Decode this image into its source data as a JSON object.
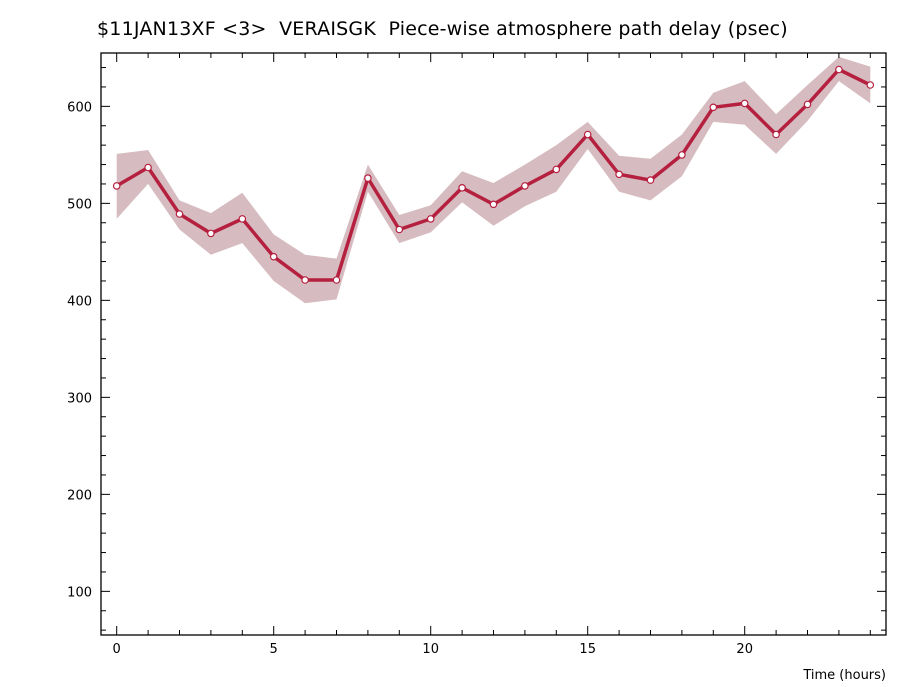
{
  "chart_data": {
    "type": "line",
    "title": "$11JAN13XF <3>  VERAISGK  Piece-wise atmosphere path delay (psec)",
    "xlabel": "Time (hours)",
    "ylabel": "",
    "xlim": [
      -0.5,
      24.5
    ],
    "ylim": [
      55,
      655
    ],
    "x_ticks": [
      0,
      5,
      10,
      15,
      20
    ],
    "y_ticks": [
      100,
      200,
      300,
      400,
      500,
      600
    ],
    "grid": false,
    "series": [
      {
        "x": [
          0,
          1,
          2,
          3,
          4,
          5,
          6,
          7,
          8,
          9,
          10,
          11,
          12,
          13,
          14,
          15,
          16,
          17,
          18,
          19,
          20,
          21,
          22,
          23,
          24
        ],
        "values": [
          518,
          537,
          489,
          469,
          484,
          445,
          421,
          421,
          526,
          473,
          484,
          516,
          499,
          518,
          535,
          571,
          530,
          524,
          550,
          599,
          603,
          571,
          602,
          638,
          622
        ],
        "upper": [
          551,
          555,
          503,
          490,
          511,
          468,
          447,
          443,
          540,
          488,
          498,
          533,
          521,
          540,
          560,
          584,
          549,
          546,
          571,
          614,
          626,
          592,
          622,
          651,
          641
        ],
        "lower": [
          484,
          520,
          473,
          447,
          459,
          420,
          397,
          401,
          512,
          459,
          470,
          501,
          477,
          497,
          512,
          556,
          512,
          503,
          528,
          584,
          581,
          551,
          585,
          626,
          603
        ]
      }
    ],
    "line_color": "#b5203f",
    "band_color": "#d6bcc1"
  }
}
